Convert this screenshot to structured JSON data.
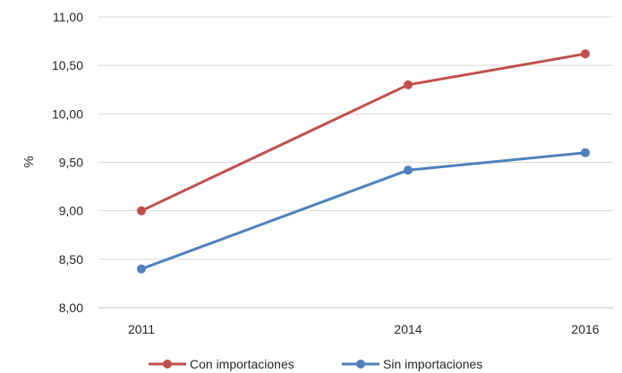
{
  "chart_data": {
    "type": "line",
    "x": [
      2011,
      2014,
      2016
    ],
    "x_tick_labels": [
      "2011",
      "2014",
      "2016"
    ],
    "ylabel": "%",
    "ylim": [
      8.0,
      11.0
    ],
    "y_ticks": [
      8.0,
      8.5,
      9.0,
      9.5,
      10.0,
      10.5,
      11.0
    ],
    "y_tick_labels": [
      "8,00",
      "8,50",
      "9,00",
      "9,50",
      "10,00",
      "10,50",
      "11,00"
    ],
    "grid": true,
    "legend_position": "bottom",
    "series": [
      {
        "name": "Con importaciones",
        "color": "#c0504d",
        "values": [
          9.0,
          10.3,
          10.62
        ]
      },
      {
        "name": "Sin importaciones",
        "color": "#4f81bd",
        "values": [
          8.4,
          9.42,
          9.6
        ]
      }
    ]
  }
}
